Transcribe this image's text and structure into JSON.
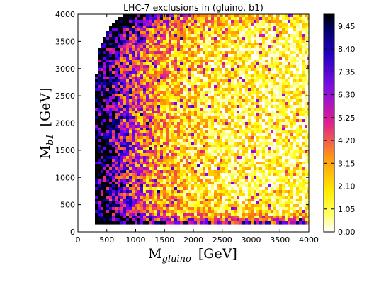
{
  "chart_data": {
    "type": "heatmap",
    "title": "LHC-7 exclusions in (gluino, b1)",
    "xlabel": {
      "main": "M",
      "subscript": "gluino",
      "unit": "[GeV]"
    },
    "ylabel": {
      "main": "M",
      "subscript": "b1",
      "unit": "[GeV]"
    },
    "xlim": [
      0,
      4000
    ],
    "ylim": [
      0,
      4000
    ],
    "x_ticks": [
      "0",
      "500",
      "1000",
      "1500",
      "2000",
      "2500",
      "3000",
      "3500",
      "4000"
    ],
    "y_ticks": [
      "0",
      "500",
      "1000",
      "1500",
      "2000",
      "2500",
      "3000",
      "3500",
      "4000"
    ],
    "colorbar": {
      "min": 0.0,
      "max": 10.0,
      "ticks": [
        "0.00",
        "1.05",
        "2.10",
        "3.15",
        "4.20",
        "5.25",
        "6.30",
        "7.35",
        "8.40",
        "9.45"
      ],
      "colors": [
        "#ffffff",
        "#ffff00",
        "#ff8800",
        "#e0208e",
        "#7000ff",
        "#0000aa",
        "#000000"
      ]
    },
    "grid": false,
    "data_region": {
      "description_free": true,
      "x_min": 300,
      "y_min": 150,
      "boundary_points": [
        [
          300,
          150
        ],
        [
          300,
          2500
        ],
        [
          340,
          3300
        ],
        [
          450,
          3550
        ],
        [
          550,
          3800
        ],
        [
          800,
          4000
        ]
      ]
    }
  }
}
